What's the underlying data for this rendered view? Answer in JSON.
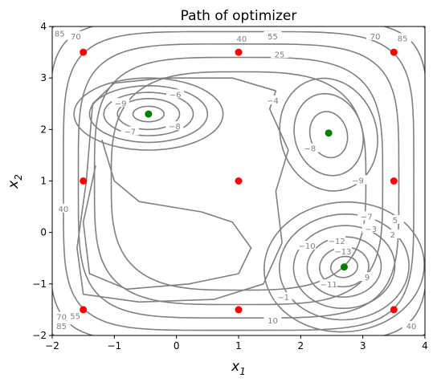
{
  "chart_data": {
    "type": "contour",
    "title": "Path of optimizer",
    "xlabel_base": "x",
    "xlabel_sub": "1",
    "ylabel_base": "x",
    "ylabel_sub": "2",
    "xlim": [
      -2,
      4
    ],
    "ylim": [
      -2,
      4
    ],
    "xticks": [
      "-2",
      "-1",
      "0",
      "1",
      "2",
      "3",
      "4"
    ],
    "yticks": [
      "-2",
      "-1",
      "0",
      "1",
      "2",
      "3",
      "4"
    ],
    "grid": false,
    "colors": {
      "contour": "#808080",
      "start_points": "#ff0000",
      "minima": "#008000",
      "axis": "#000000"
    },
    "start_points": [
      {
        "x": -1.5,
        "y": 3.5
      },
      {
        "x": 1.0,
        "y": 3.5
      },
      {
        "x": 3.5,
        "y": 3.5
      },
      {
        "x": -1.5,
        "y": 1.0
      },
      {
        "x": 1.0,
        "y": 1.0
      },
      {
        "x": 3.5,
        "y": 1.0
      },
      {
        "x": -1.5,
        "y": -1.5
      },
      {
        "x": 1.0,
        "y": -1.5
      },
      {
        "x": 3.5,
        "y": -1.5
      }
    ],
    "minima": [
      {
        "x": -0.45,
        "y": 2.3
      },
      {
        "x": 2.45,
        "y": 1.93
      },
      {
        "x": 2.7,
        "y": -0.67
      }
    ],
    "contour_labels": [
      {
        "text": "85",
        "x": -1.88,
        "y": 3.85
      },
      {
        "text": "70",
        "x": -1.62,
        "y": 3.8
      },
      {
        "text": "40",
        "x": 1.05,
        "y": 3.75
      },
      {
        "text": "55",
        "x": 1.55,
        "y": 3.8
      },
      {
        "text": "25",
        "x": 1.66,
        "y": 3.45
      },
      {
        "text": "70",
        "x": 3.2,
        "y": 3.8
      },
      {
        "text": "85",
        "x": 3.64,
        "y": 3.76
      },
      {
        "text": "−9",
        "x": -0.9,
        "y": 2.5
      },
      {
        "text": "−6",
        "x": -0.02,
        "y": 2.67
      },
      {
        "text": "−4",
        "x": 1.55,
        "y": 2.55
      },
      {
        "text": "−8",
        "x": -0.03,
        "y": 2.05
      },
      {
        "text": "−7",
        "x": -0.75,
        "y": 1.95
      },
      {
        "text": "−8",
        "x": 2.15,
        "y": 1.62
      },
      {
        "text": "−9",
        "x": 2.92,
        "y": 1.0
      },
      {
        "text": "40",
        "x": -1.82,
        "y": 0.45
      },
      {
        "text": "−7",
        "x": 3.06,
        "y": 0.3
      },
      {
        "text": "−3",
        "x": 3.13,
        "y": 0.06
      },
      {
        "text": "5",
        "x": 3.52,
        "y": 0.23
      },
      {
        "text": "2",
        "x": 3.48,
        "y": -0.05
      },
      {
        "text": "−12",
        "x": 2.58,
        "y": -0.18
      },
      {
        "text": "−13",
        "x": 2.68,
        "y": -0.38
      },
      {
        "text": "−10",
        "x": 2.1,
        "y": -0.27
      },
      {
        "text": "9",
        "x": 3.07,
        "y": -0.88
      },
      {
        "text": "−11",
        "x": 2.45,
        "y": -1.02
      },
      {
        "text": "−1",
        "x": 1.72,
        "y": -1.27
      },
      {
        "text": "10",
        "x": 1.55,
        "y": -1.72
      },
      {
        "text": "70",
        "x": -1.85,
        "y": -1.65
      },
      {
        "text": "55",
        "x": -1.63,
        "y": -1.63
      },
      {
        "text": "85",
        "x": -1.85,
        "y": -1.83
      },
      {
        "text": "40",
        "x": 3.78,
        "y": -1.83
      }
    ]
  }
}
